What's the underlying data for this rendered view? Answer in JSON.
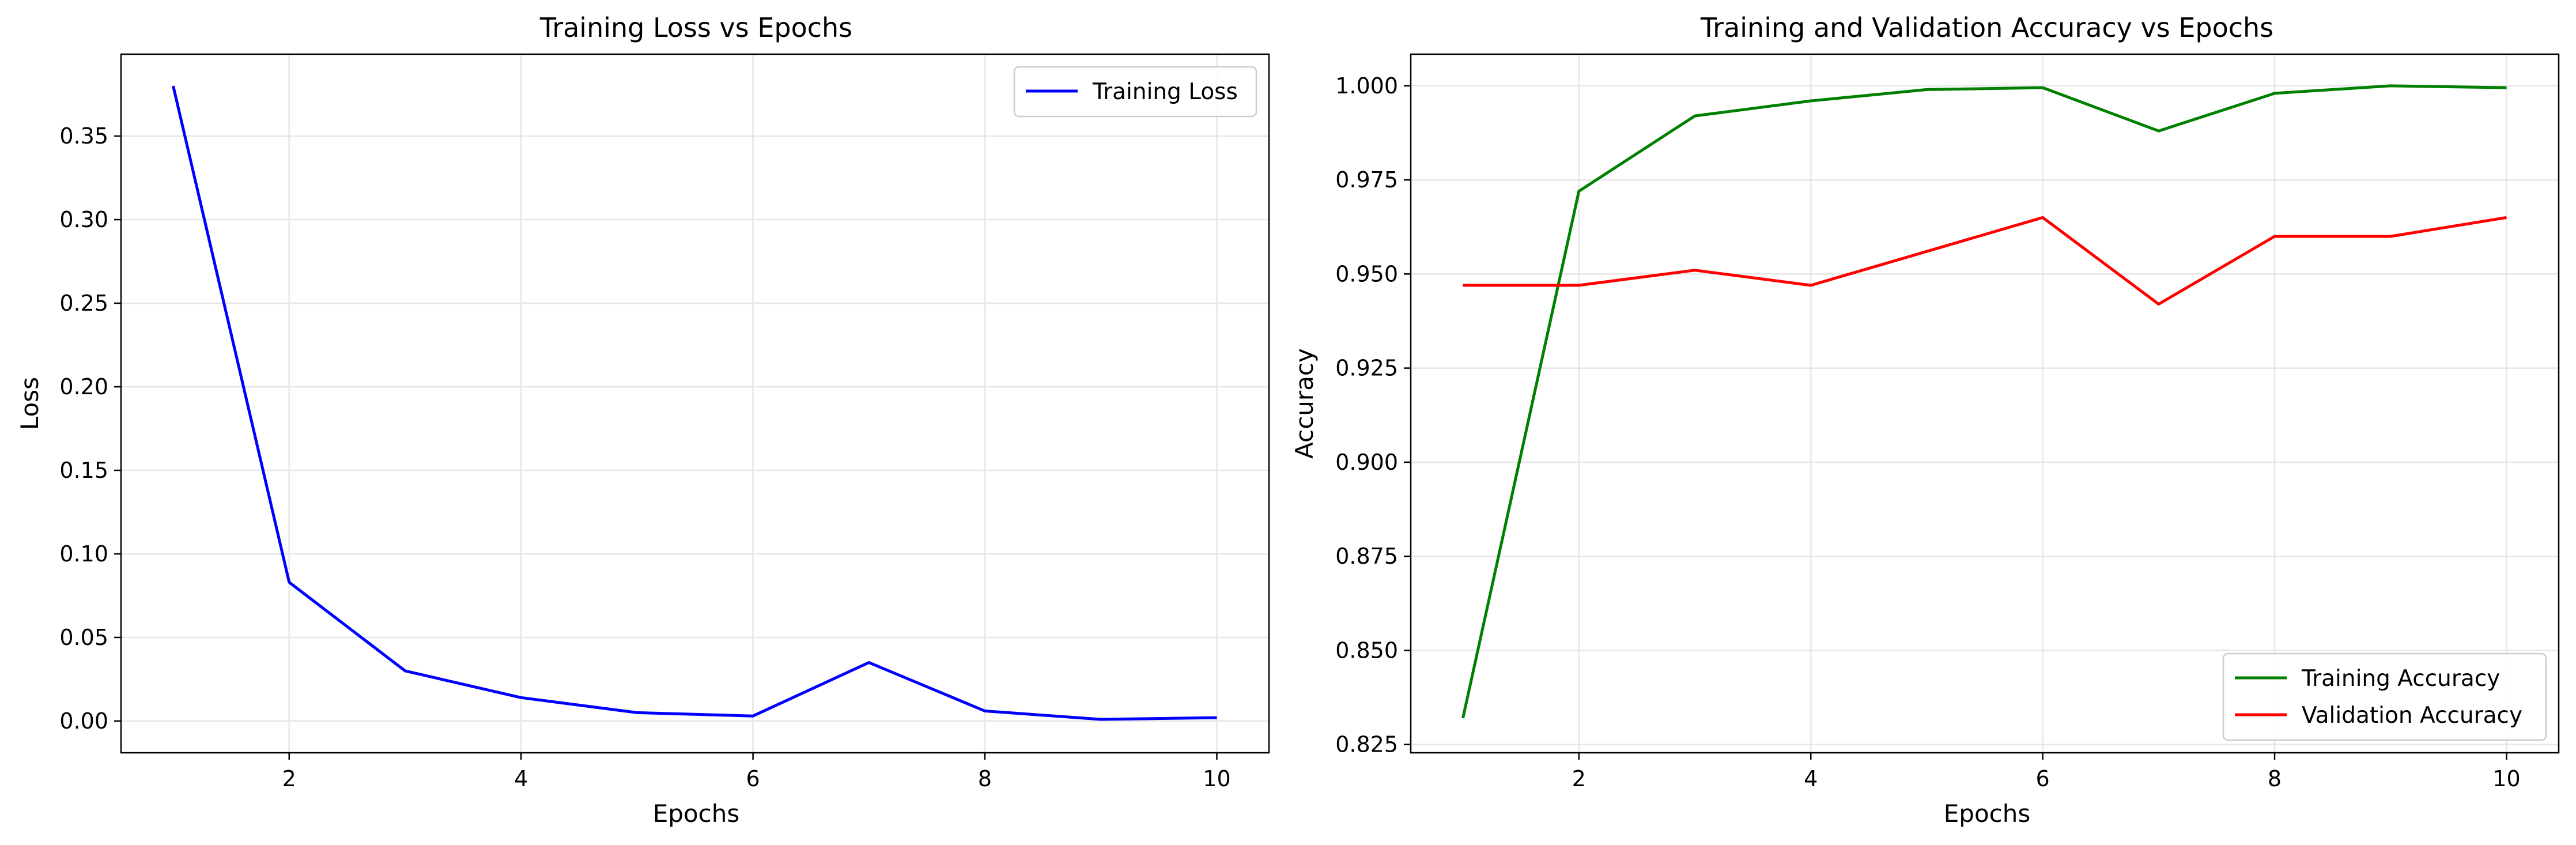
{
  "chart_data": [
    {
      "type": "line",
      "title": "Training Loss vs Epochs",
      "xlabel": "Epochs",
      "ylabel": "Loss",
      "x": [
        1,
        2,
        3,
        4,
        5,
        6,
        7,
        8,
        9,
        10
      ],
      "xlim": [
        0.55,
        10.45
      ],
      "ylim": [
        -0.019,
        0.399
      ],
      "xticks": [
        2,
        4,
        6,
        8,
        10
      ],
      "yticks": [
        0.0,
        0.05,
        0.1,
        0.15,
        0.2,
        0.25,
        0.3,
        0.35
      ],
      "ytick_labels": [
        "0.00",
        "0.05",
        "0.10",
        "0.15",
        "0.20",
        "0.25",
        "0.30",
        "0.35"
      ],
      "grid": true,
      "legend_position": "top-right",
      "series": [
        {
          "name": "Training Loss",
          "color": "#0000ff",
          "values": [
            0.38,
            0.083,
            0.03,
            0.014,
            0.005,
            0.003,
            0.035,
            0.006,
            0.001,
            0.002
          ]
        }
      ]
    },
    {
      "type": "line",
      "title": "Training and Validation Accuracy vs Epochs",
      "xlabel": "Epochs",
      "ylabel": "Accuracy",
      "x": [
        1,
        2,
        3,
        4,
        5,
        6,
        7,
        8,
        9,
        10
      ],
      "xlim": [
        0.55,
        10.45
      ],
      "ylim": [
        0.8228,
        1.0084
      ],
      "xticks": [
        2,
        4,
        6,
        8,
        10
      ],
      "yticks": [
        0.825,
        0.85,
        0.875,
        0.9,
        0.925,
        0.95,
        0.975,
        1.0
      ],
      "ytick_labels": [
        "0.825",
        "0.850",
        "0.875",
        "0.900",
        "0.925",
        "0.950",
        "0.975",
        "1.000"
      ],
      "grid": true,
      "legend_position": "bottom-right",
      "series": [
        {
          "name": "Training Accuracy",
          "color": "#008000",
          "values": [
            0.832,
            0.972,
            0.992,
            0.996,
            0.999,
            0.9995,
            0.988,
            0.998,
            1.0,
            0.9995
          ]
        },
        {
          "name": "Validation Accuracy",
          "color": "#ff0000",
          "values": [
            0.947,
            0.947,
            0.951,
            0.947,
            0.956,
            0.965,
            0.942,
            0.96,
            0.96,
            0.965
          ]
        }
      ]
    }
  ]
}
